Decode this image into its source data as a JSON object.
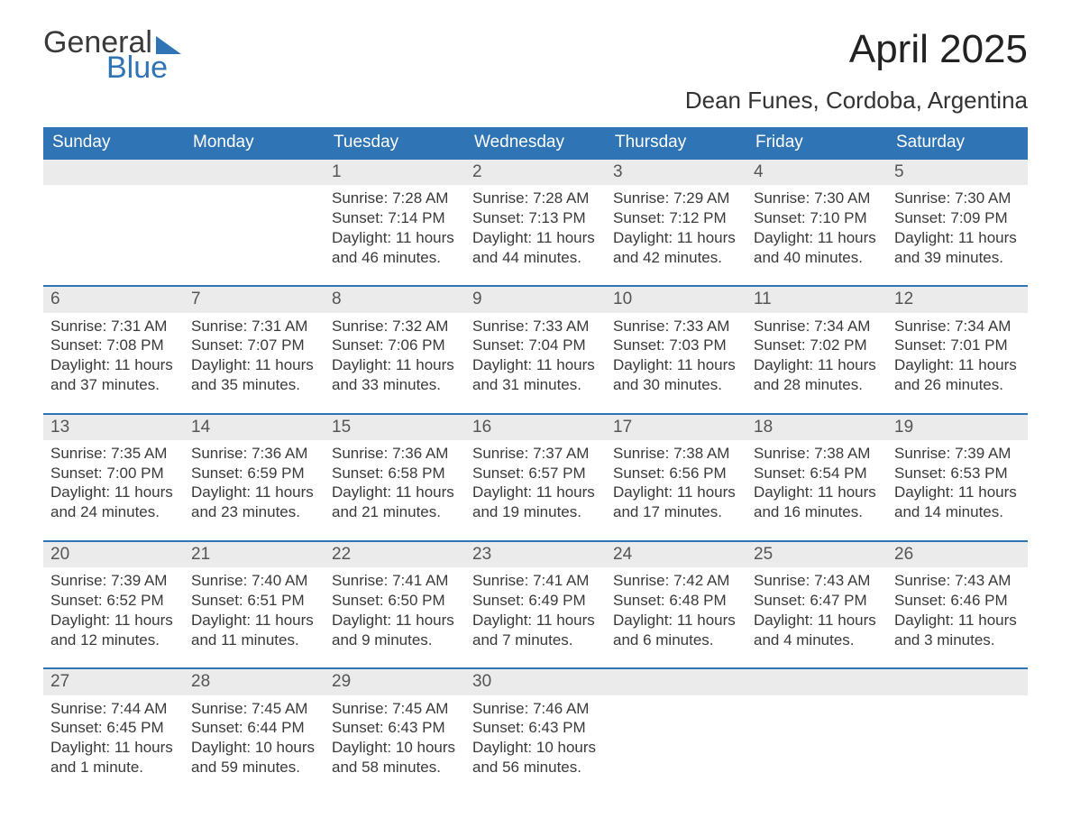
{
  "brand": {
    "line1": "General",
    "line2": "Blue"
  },
  "title": "April 2025",
  "subtitle": "Dean Funes, Cordoba, Argentina",
  "colors": {
    "header_bg": "#2f74b5",
    "header_text": "#ffffff",
    "daynum_bg": "#ebebeb",
    "week_border": "#2f74b5",
    "body_text": "#3a3a3a",
    "page_bg": "#ffffff"
  },
  "typography": {
    "title_fontsize": 44,
    "subtitle_fontsize": 26,
    "dow_fontsize": 19,
    "body_fontsize": 17
  },
  "days_of_week": [
    "Sunday",
    "Monday",
    "Tuesday",
    "Wednesday",
    "Thursday",
    "Friday",
    "Saturday"
  ],
  "labels": {
    "sunrise": "Sunrise",
    "sunset": "Sunset",
    "daylight": "Daylight"
  },
  "weeks": [
    [
      null,
      null,
      {
        "n": "1",
        "sunrise": "7:28 AM",
        "sunset": "7:14 PM",
        "daylight": "11 hours and 46 minutes."
      },
      {
        "n": "2",
        "sunrise": "7:28 AM",
        "sunset": "7:13 PM",
        "daylight": "11 hours and 44 minutes."
      },
      {
        "n": "3",
        "sunrise": "7:29 AM",
        "sunset": "7:12 PM",
        "daylight": "11 hours and 42 minutes."
      },
      {
        "n": "4",
        "sunrise": "7:30 AM",
        "sunset": "7:10 PM",
        "daylight": "11 hours and 40 minutes."
      },
      {
        "n": "5",
        "sunrise": "7:30 AM",
        "sunset": "7:09 PM",
        "daylight": "11 hours and 39 minutes."
      }
    ],
    [
      {
        "n": "6",
        "sunrise": "7:31 AM",
        "sunset": "7:08 PM",
        "daylight": "11 hours and 37 minutes."
      },
      {
        "n": "7",
        "sunrise": "7:31 AM",
        "sunset": "7:07 PM",
        "daylight": "11 hours and 35 minutes."
      },
      {
        "n": "8",
        "sunrise": "7:32 AM",
        "sunset": "7:06 PM",
        "daylight": "11 hours and 33 minutes."
      },
      {
        "n": "9",
        "sunrise": "7:33 AM",
        "sunset": "7:04 PM",
        "daylight": "11 hours and 31 minutes."
      },
      {
        "n": "10",
        "sunrise": "7:33 AM",
        "sunset": "7:03 PM",
        "daylight": "11 hours and 30 minutes."
      },
      {
        "n": "11",
        "sunrise": "7:34 AM",
        "sunset": "7:02 PM",
        "daylight": "11 hours and 28 minutes."
      },
      {
        "n": "12",
        "sunrise": "7:34 AM",
        "sunset": "7:01 PM",
        "daylight": "11 hours and 26 minutes."
      }
    ],
    [
      {
        "n": "13",
        "sunrise": "7:35 AM",
        "sunset": "7:00 PM",
        "daylight": "11 hours and 24 minutes."
      },
      {
        "n": "14",
        "sunrise": "7:36 AM",
        "sunset": "6:59 PM",
        "daylight": "11 hours and 23 minutes."
      },
      {
        "n": "15",
        "sunrise": "7:36 AM",
        "sunset": "6:58 PM",
        "daylight": "11 hours and 21 minutes."
      },
      {
        "n": "16",
        "sunrise": "7:37 AM",
        "sunset": "6:57 PM",
        "daylight": "11 hours and 19 minutes."
      },
      {
        "n": "17",
        "sunrise": "7:38 AM",
        "sunset": "6:56 PM",
        "daylight": "11 hours and 17 minutes."
      },
      {
        "n": "18",
        "sunrise": "7:38 AM",
        "sunset": "6:54 PM",
        "daylight": "11 hours and 16 minutes."
      },
      {
        "n": "19",
        "sunrise": "7:39 AM",
        "sunset": "6:53 PM",
        "daylight": "11 hours and 14 minutes."
      }
    ],
    [
      {
        "n": "20",
        "sunrise": "7:39 AM",
        "sunset": "6:52 PM",
        "daylight": "11 hours and 12 minutes."
      },
      {
        "n": "21",
        "sunrise": "7:40 AM",
        "sunset": "6:51 PM",
        "daylight": "11 hours and 11 minutes."
      },
      {
        "n": "22",
        "sunrise": "7:41 AM",
        "sunset": "6:50 PM",
        "daylight": "11 hours and 9 minutes."
      },
      {
        "n": "23",
        "sunrise": "7:41 AM",
        "sunset": "6:49 PM",
        "daylight": "11 hours and 7 minutes."
      },
      {
        "n": "24",
        "sunrise": "7:42 AM",
        "sunset": "6:48 PM",
        "daylight": "11 hours and 6 minutes."
      },
      {
        "n": "25",
        "sunrise": "7:43 AM",
        "sunset": "6:47 PM",
        "daylight": "11 hours and 4 minutes."
      },
      {
        "n": "26",
        "sunrise": "7:43 AM",
        "sunset": "6:46 PM",
        "daylight": "11 hours and 3 minutes."
      }
    ],
    [
      {
        "n": "27",
        "sunrise": "7:44 AM",
        "sunset": "6:45 PM",
        "daylight": "11 hours and 1 minute."
      },
      {
        "n": "28",
        "sunrise": "7:45 AM",
        "sunset": "6:44 PM",
        "daylight": "10 hours and 59 minutes."
      },
      {
        "n": "29",
        "sunrise": "7:45 AM",
        "sunset": "6:43 PM",
        "daylight": "10 hours and 58 minutes."
      },
      {
        "n": "30",
        "sunrise": "7:46 AM",
        "sunset": "6:43 PM",
        "daylight": "10 hours and 56 minutes."
      },
      null,
      null,
      null
    ]
  ]
}
